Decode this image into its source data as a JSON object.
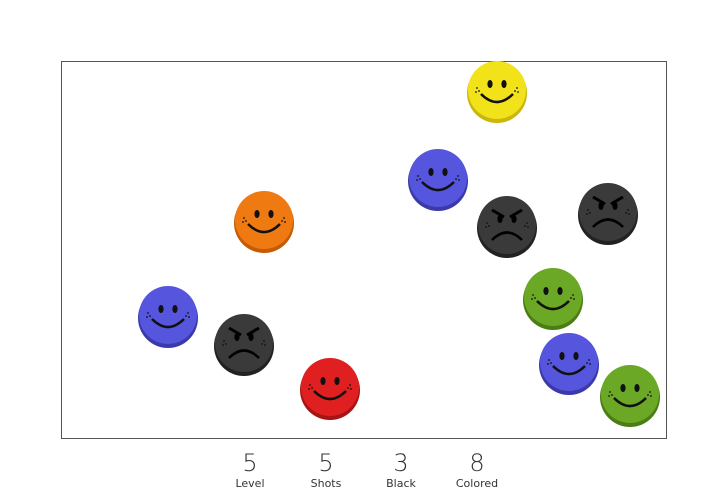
{
  "stats": [
    {
      "value": 5,
      "label": "Level"
    },
    {
      "value": 5,
      "label": "Shots"
    },
    {
      "value": 3,
      "label": "Black"
    },
    {
      "value": 8,
      "label": "Colored"
    }
  ]
}
